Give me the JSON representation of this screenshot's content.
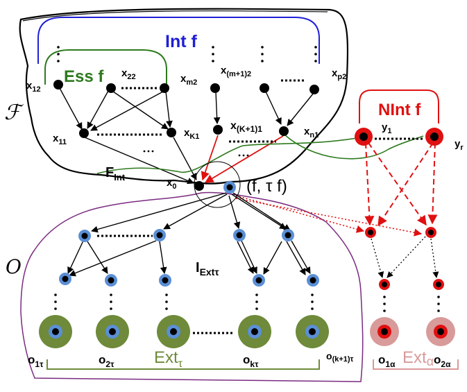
{
  "colors": {
    "int": "#1f1fd6",
    "ess": "#2d7a1d",
    "nint": "#e01010",
    "ext_tau": "#6e8a3a",
    "ext_alpha": "#d99a9a",
    "boundary_o": "#7a2a80",
    "node_black": "#000000",
    "node_blue_halo": "#5b8fd6",
    "node_red_halo": "#e01010"
  },
  "labels": {
    "script_f": "ℱ",
    "script_o": "O",
    "int_f": "Int f",
    "ess_f": "Ess f",
    "nint_f": "NInt f",
    "f_int": {
      "main": "F",
      "sub": "Int"
    },
    "i_ext_tau": {
      "main": "I",
      "sub": "Extτ"
    },
    "ext_tau": {
      "main": "Ext",
      "sub": "τ"
    },
    "ext_alpha": {
      "main": "Ext",
      "sub": "α"
    },
    "f_tau_f": "(f, τ f)",
    "x12": {
      "main": "x",
      "sub": "12"
    },
    "x22": {
      "main": "x",
      "sub": "22"
    },
    "xm2": {
      "main": "x",
      "sub": "m2"
    },
    "xm1_2": {
      "main": "x",
      "sub": "(m+1)2"
    },
    "xp2": {
      "main": "x",
      "sub": "p2"
    },
    "x11": {
      "main": "x",
      "sub": "11"
    },
    "xK1": {
      "main": "x",
      "sub": "K1"
    },
    "xK1_1": {
      "main": "x",
      "sub": "(K+1)1"
    },
    "xn1": {
      "main": "x",
      "sub": "n1"
    },
    "x0": {
      "main": "x",
      "sub": "0"
    },
    "y1": {
      "main": "y",
      "sub": "1"
    },
    "yr": {
      "main": "y",
      "sub": "r"
    },
    "o1tau": {
      "main": "o",
      "sub": "1τ"
    },
    "o2tau": {
      "main": "o",
      "sub": "2τ"
    },
    "oktau": {
      "main": "o",
      "sub": "kτ"
    },
    "ok1tau": {
      "main": "o",
      "sub": "(k+1)τ"
    },
    "o1alpha": {
      "main": "o",
      "sub": "1α"
    },
    "o2alpha": {
      "main": "o",
      "sub": "2α"
    }
  }
}
